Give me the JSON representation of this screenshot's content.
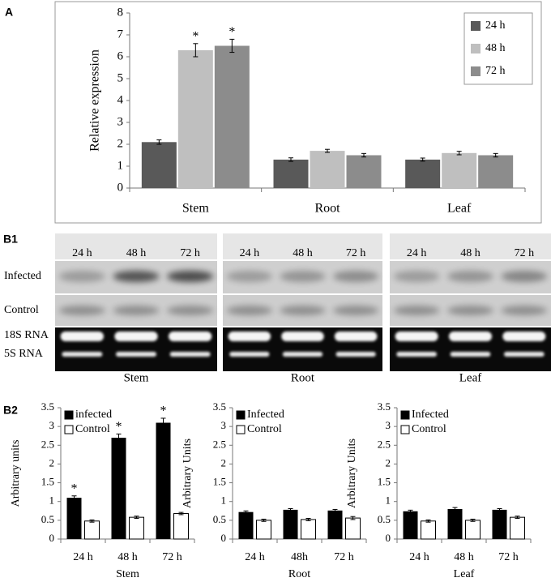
{
  "panel_labels": [
    "A",
    "B1",
    "B2"
  ],
  "chart_data": [
    {
      "type": "bar",
      "y_label": "Relative expression",
      "categories": [
        "Stem",
        "Root",
        "Leaf"
      ],
      "series": [
        {
          "name": "24 h",
          "color": "#595959",
          "values": [
            2.1,
            1.3,
            1.3
          ],
          "errors": [
            0.1,
            0.08,
            0.07
          ]
        },
        {
          "name": "48 h",
          "color": "#bfbfbf",
          "values": [
            6.3,
            1.7,
            1.6
          ],
          "errors": [
            0.3,
            0.07,
            0.08
          ]
        },
        {
          "name": "72 h",
          "color": "#8c8c8c",
          "values": [
            6.5,
            1.5,
            1.5
          ],
          "errors": [
            0.3,
            0.08,
            0.08
          ]
        }
      ],
      "annotations": [
        {
          "text": "*",
          "series": "48 h",
          "category": "Stem"
        },
        {
          "text": "*",
          "series": "72 h",
          "category": "Stem"
        }
      ],
      "ylim": [
        0,
        8
      ],
      "yticks": [
        0,
        1,
        2,
        3,
        4,
        5,
        6,
        7,
        8
      ],
      "legend": "top-right"
    },
    {
      "type": "bar",
      "x_label": "Stem",
      "y_label": "Arbitrary units",
      "categories": [
        "24 h",
        "48 h",
        "72 h"
      ],
      "series": [
        {
          "name": "infected",
          "color": "#000000",
          "values": [
            1.1,
            2.7,
            3.1
          ],
          "errors": [
            0.05,
            0.1,
            0.12
          ]
        },
        {
          "name": "Control",
          "color": "#ffffff",
          "values": [
            0.48,
            0.58,
            0.68
          ],
          "errors": [
            0.03,
            0.03,
            0.03
          ]
        }
      ],
      "annotations": [
        {
          "text": "*",
          "series": "infected",
          "category": "24 h"
        },
        {
          "text": "*",
          "series": "infected",
          "category": "48 h"
        },
        {
          "text": "*",
          "series": "infected",
          "category": "72 h"
        }
      ],
      "ylim": [
        0,
        3.5
      ],
      "yticks": [
        0,
        0.5,
        1,
        1.5,
        2,
        2.5,
        3,
        3.5
      ],
      "legend": "top-left"
    },
    {
      "type": "bar",
      "x_label": "Root",
      "y_label": "Arbitrary Units",
      "categories": [
        "24 h",
        "48h",
        "72 h"
      ],
      "series": [
        {
          "name": "Infected",
          "color": "#000000",
          "values": [
            0.72,
            0.78,
            0.76
          ],
          "errors": [
            0.03,
            0.03,
            0.03
          ]
        },
        {
          "name": "Control",
          "color": "#ffffff",
          "values": [
            0.5,
            0.52,
            0.56
          ],
          "errors": [
            0.03,
            0.03,
            0.04
          ]
        }
      ],
      "ylim": [
        0,
        3.5
      ],
      "yticks": [
        0,
        0.5,
        1,
        1.5,
        2,
        2.5,
        3,
        3.5
      ],
      "legend": "top-left"
    },
    {
      "type": "bar",
      "x_label": "Leaf",
      "y_label": "Arbitrary Units",
      "categories": [
        "24 h",
        "48 h",
        "72 h"
      ],
      "series": [
        {
          "name": "Infected",
          "color": "#000000",
          "values": [
            0.74,
            0.8,
            0.78
          ],
          "errors": [
            0.03,
            0.04,
            0.03
          ]
        },
        {
          "name": "Control",
          "color": "#ffffff",
          "values": [
            0.48,
            0.5,
            0.58
          ],
          "errors": [
            0.03,
            0.03,
            0.03
          ]
        }
      ],
      "ylim": [
        0,
        3.5
      ],
      "yticks": [
        0,
        0.5,
        1,
        1.5,
        2,
        2.5,
        3,
        3.5
      ],
      "legend": "top-left"
    }
  ],
  "blot": {
    "rows": [
      "Infected",
      "Control",
      "18S RNA",
      "5S RNA"
    ],
    "panels": [
      {
        "tissue": "Stem",
        "times": [
          "24 h",
          "48 h",
          "72 h"
        ]
      },
      {
        "tissue": "Root",
        "times": [
          "24 h",
          "48 h",
          "72 h"
        ]
      },
      {
        "tissue": "Leaf",
        "times": [
          "24 h",
          "48 h",
          "72 h"
        ]
      }
    ]
  }
}
